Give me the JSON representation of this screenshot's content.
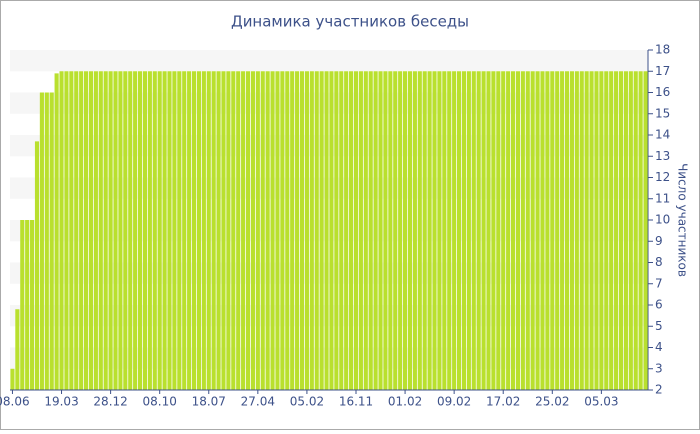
{
  "chart_data": {
    "type": "bar",
    "title": "Динамика участников беседы",
    "y_label": "Число участников",
    "color": "#b9e02e",
    "categories": [
      "08.06",
      null,
      null,
      null,
      null,
      null,
      null,
      null,
      null,
      null,
      "19.03",
      null,
      null,
      null,
      null,
      null,
      null,
      null,
      null,
      null,
      "28.12",
      null,
      null,
      null,
      null,
      null,
      null,
      null,
      null,
      null,
      "08.10",
      null,
      null,
      null,
      null,
      null,
      null,
      null,
      null,
      null,
      "18.07",
      null,
      null,
      null,
      null,
      null,
      null,
      null,
      null,
      null,
      "27.04",
      null,
      null,
      null,
      null,
      null,
      null,
      null,
      null,
      null,
      "05.02",
      null,
      null,
      null,
      null,
      null,
      null,
      null,
      null,
      null,
      "16.11",
      null,
      null,
      null,
      null,
      null,
      null,
      null,
      null,
      null,
      "01.02",
      null,
      null,
      null,
      null,
      null,
      null,
      null,
      null,
      null,
      "09.02",
      null,
      null,
      null,
      null,
      null,
      null,
      null,
      null,
      null,
      "17.02",
      null,
      null,
      null,
      null,
      null,
      null,
      null,
      null,
      null,
      "25.02",
      null,
      null,
      null,
      null,
      null,
      null,
      null,
      null,
      null,
      "05.03",
      null,
      null,
      null,
      null,
      null,
      null,
      null,
      null,
      null
    ],
    "values": [
      3,
      5.8,
      10,
      10,
      10,
      13.7,
      16,
      16,
      16,
      16.9,
      17,
      17,
      17,
      17,
      17,
      17,
      17,
      17,
      17,
      17,
      17,
      17,
      17,
      17,
      17,
      17,
      17,
      17,
      17,
      17,
      17,
      17,
      17,
      17,
      17,
      17,
      17,
      17,
      17,
      17,
      17,
      17,
      17,
      17,
      17,
      17,
      17,
      17,
      17,
      17,
      17,
      17,
      17,
      17,
      17,
      17,
      17,
      17,
      17,
      17,
      17,
      17,
      17,
      17,
      17,
      17,
      17,
      17,
      17,
      17,
      17,
      17,
      17,
      17,
      17,
      17,
      17,
      17,
      17,
      17,
      17,
      17,
      17,
      17,
      17,
      17,
      17,
      17,
      17,
      17,
      17,
      17,
      17,
      17,
      17,
      17,
      17,
      17,
      17,
      17,
      17,
      17,
      17,
      17,
      17,
      17,
      17,
      17,
      17,
      17,
      17,
      17,
      17,
      17,
      17,
      17,
      17,
      17,
      17,
      17,
      17,
      17,
      17,
      17,
      17,
      17,
      17,
      17,
      17,
      17
    ],
    "ylim": [
      2,
      18
    ],
    "yticks": [
      2,
      3,
      4,
      5,
      6,
      7,
      8,
      9,
      10,
      11,
      12,
      13,
      14,
      15,
      16,
      17,
      18
    ],
    "grid": true
  }
}
